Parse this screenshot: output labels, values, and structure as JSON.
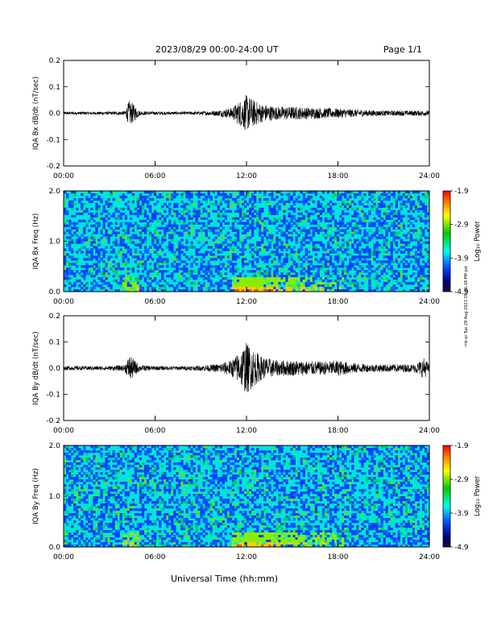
{
  "header": {
    "title": "2023/08/29  00:00-24:00 UT",
    "page": "Page 1/1"
  },
  "footer": {
    "xlabel": "Universal Time (hh:mm)"
  },
  "side_note": "mk-pi Tue 29 Aug 2023 09:46:18 PM pst",
  "colorbar": {
    "label": "Log₁₀ Power",
    "ticks": [
      "-1.9",
      "-2.9",
      "-3.9",
      "-4.9"
    ],
    "colors": [
      "#ff0000",
      "#ff8800",
      "#ffff00",
      "#00cc00",
      "#00ffee",
      "#0055ff",
      "#000080",
      "#200040"
    ]
  },
  "chart_data": [
    {
      "type": "line",
      "title": "",
      "ylabel": "IQA Bx dB/dt (nT/sec)",
      "xlabel": "",
      "xlim": [
        "00:00",
        "24:00"
      ],
      "ylim": [
        -0.2,
        0.2
      ],
      "xticks": [
        "00:00",
        "06:00",
        "12:00",
        "18:00",
        "24:00"
      ],
      "yticks": [
        "0.2",
        "0.1",
        "0.0",
        "-0.1",
        "-0.2"
      ],
      "series": [
        {
          "x": [
            "00:00",
            "01:00",
            "02:00",
            "03:00",
            "04:00",
            "04:20",
            "05:00",
            "06:00",
            "07:00",
            "08:00",
            "09:00",
            "10:00",
            "11:00",
            "11:30",
            "12:00",
            "12:30",
            "13:00",
            "14:00",
            "15:00",
            "16:00",
            "17:00",
            "18:00",
            "19:00",
            "20:00",
            "21:00",
            "22:00",
            "23:00",
            "24:00"
          ],
          "amplitude": [
            0.006,
            0.006,
            0.006,
            0.006,
            0.008,
            0.05,
            0.008,
            0.006,
            0.006,
            0.006,
            0.007,
            0.01,
            0.02,
            0.045,
            0.07,
            0.05,
            0.035,
            0.025,
            0.025,
            0.022,
            0.02,
            0.018,
            0.015,
            0.012,
            0.01,
            0.01,
            0.01,
            0.01
          ]
        }
      ]
    },
    {
      "type": "heatmap",
      "title": "",
      "ylabel": "IQA Bx Freq (Hz)",
      "xlabel": "",
      "xlim": [
        "00:00",
        "24:00"
      ],
      "ylim": [
        0.0,
        2.0
      ],
      "xticks": [
        "00:00",
        "06:00",
        "12:00",
        "18:00",
        "24:00"
      ],
      "yticks": [
        "2.0",
        "1.0",
        "0.0"
      ],
      "zlim": [
        -4.9,
        -1.9
      ]
    },
    {
      "type": "line",
      "title": "",
      "ylabel": "IQA By dB/dt (nT/sec)",
      "xlabel": "",
      "xlim": [
        "00:00",
        "24:00"
      ],
      "ylim": [
        -0.2,
        0.2
      ],
      "xticks": [
        "00:00",
        "06:00",
        "12:00",
        "18:00",
        "24:00"
      ],
      "yticks": [
        "0.2",
        "0.1",
        "0.0",
        "-0.1",
        "-0.2"
      ],
      "series": [
        {
          "x": [
            "00:00",
            "01:00",
            "02:00",
            "03:00",
            "04:00",
            "04:20",
            "05:00",
            "06:00",
            "07:00",
            "08:00",
            "09:00",
            "10:00",
            "11:00",
            "11:30",
            "12:00",
            "12:30",
            "13:00",
            "14:00",
            "15:00",
            "16:00",
            "17:00",
            "18:00",
            "19:00",
            "20:00",
            "21:00",
            "22:00",
            "23:00",
            "23:40",
            "24:00"
          ],
          "amplitude": [
            0.008,
            0.008,
            0.008,
            0.008,
            0.012,
            0.05,
            0.012,
            0.008,
            0.008,
            0.008,
            0.01,
            0.015,
            0.03,
            0.06,
            0.1,
            0.07,
            0.045,
            0.03,
            0.03,
            0.028,
            0.025,
            0.03,
            0.02,
            0.015,
            0.015,
            0.015,
            0.015,
            0.04,
            0.015
          ]
        }
      ]
    },
    {
      "type": "heatmap",
      "title": "",
      "ylabel": "IQA By Freq (Hz)",
      "xlabel": "",
      "xlim": [
        "00:00",
        "24:00"
      ],
      "ylim": [
        0.0,
        2.0
      ],
      "xticks": [
        "00:00",
        "06:00",
        "12:00",
        "18:00",
        "24:00"
      ],
      "yticks": [
        "2.0",
        "1.0",
        "0.0"
      ],
      "zlim": [
        -4.9,
        -1.9
      ]
    }
  ]
}
